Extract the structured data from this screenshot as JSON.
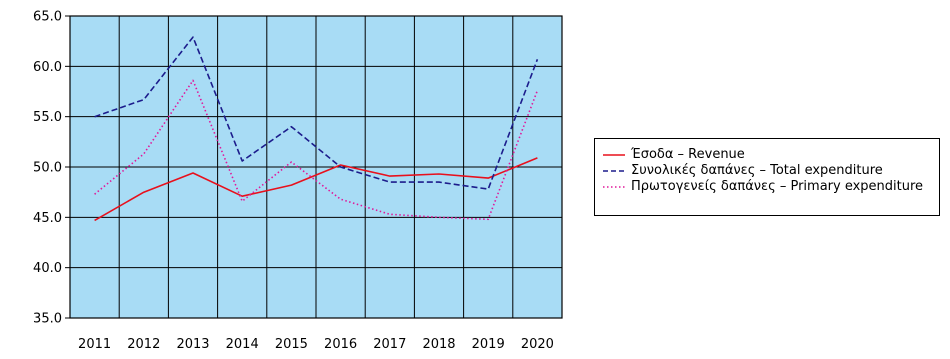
{
  "chart_data": {
    "type": "line",
    "categories": [
      "2011",
      "2012",
      "2013",
      "2014",
      "2015",
      "2016",
      "2017",
      "2018",
      "2019",
      "2020"
    ],
    "series": [
      {
        "name": "Έσοδα – Revenue",
        "color": "#e8101c",
        "dash": "solid",
        "values": [
          44.7,
          47.5,
          49.4,
          47.1,
          48.2,
          50.2,
          49.1,
          49.3,
          48.9,
          50.9
        ]
      },
      {
        "name": "Συνολικές δαπάνες – Total expenditure",
        "color": "#1c1c8c",
        "dash": "dashed",
        "values": [
          55.0,
          56.7,
          62.9,
          50.6,
          54.0,
          50.0,
          48.5,
          48.5,
          47.8,
          60.7
        ]
      },
      {
        "name": "Πρωτογενείς δαπάνες – Primary expenditure",
        "color": "#e0189a",
        "dash": "dotted",
        "values": [
          47.3,
          51.3,
          58.6,
          46.6,
          50.5,
          46.8,
          45.3,
          45.0,
          44.8,
          57.6
        ]
      }
    ],
    "yticks": [
      "35.0",
      "40.0",
      "45.0",
      "50.0",
      "55.0",
      "60.0",
      "65.0"
    ],
    "ylim": [
      35,
      65
    ],
    "grid": true,
    "background": "#a8dcf5",
    "legend_position": "right",
    "title": "",
    "xlabel": "",
    "ylabel": ""
  }
}
